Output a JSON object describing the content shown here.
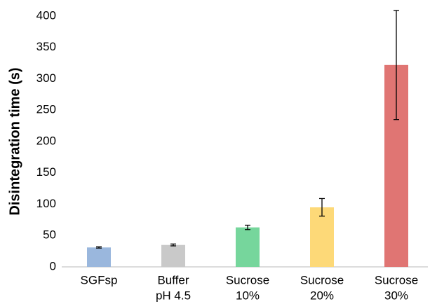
{
  "chart_data": {
    "type": "bar",
    "y_label": "Disintegration time (s)",
    "categories": [
      [
        "SGFsp"
      ],
      [
        "Buffer",
        "pH 4.5"
      ],
      [
        "Sucrose",
        "10%"
      ],
      [
        "Sucrose",
        "20%"
      ],
      [
        "Sucrose",
        "30%"
      ]
    ],
    "values": [
      31,
      35,
      63,
      95,
      322
    ],
    "errors": [
      1,
      1.5,
      3.5,
      14,
      87
    ],
    "colors": [
      "#9ab7dd",
      "#c9c9c9",
      "#76d69c",
      "#fdd978",
      "#e07573"
    ],
    "ylim": [
      0,
      400
    ],
    "yticks": [
      0,
      50,
      100,
      150,
      200,
      250,
      300,
      350,
      400
    ],
    "grid": false
  }
}
